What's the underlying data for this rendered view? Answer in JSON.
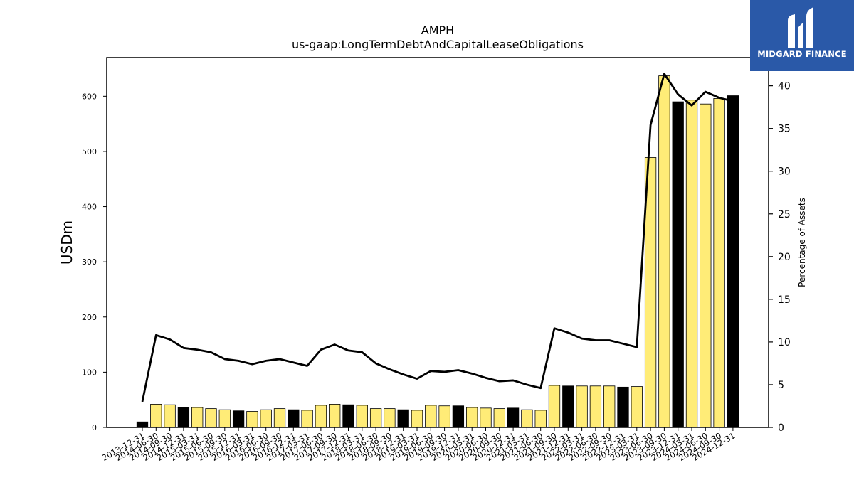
{
  "logo": {
    "text": "MIDGARD FINANCE",
    "bg_color": "#2a59a8"
  },
  "colors": {
    "bar_yellow": "#ffec77",
    "bar_black": "#000000",
    "line": "#000000"
  },
  "chart_data": {
    "type": "bar",
    "title": "AMPH",
    "subtitle": "us-gaap:LongTermDebtAndCapitalLeaseObligations",
    "ylabel": "USDm",
    "y2label": "Percentage of Assets",
    "ylim": [
      0,
      670
    ],
    "y2lim": [
      0,
      43.3
    ],
    "yticks": [
      0,
      100,
      200,
      300,
      400,
      500,
      600
    ],
    "y2ticks": [
      0,
      5,
      10,
      15,
      20,
      25,
      30,
      35,
      40
    ],
    "categories": [
      "2013-12-31",
      "2014-06-30",
      "2014-09-30",
      "2014-12-31",
      "2015-03-31",
      "2015-06-30",
      "2015-09-30",
      "2015-12-31",
      "2016-03-31",
      "2016-06-30",
      "2016-09-30",
      "2016-12-31",
      "2017-03-31",
      "2017-06-30",
      "2017-09-30",
      "2017-12-31",
      "2018-03-31",
      "2018-06-30",
      "2018-09-30",
      "2018-12-31",
      "2019-03-31",
      "2019-06-30",
      "2019-09-30",
      "2019-12-31",
      "2020-03-31",
      "2020-06-30",
      "2020-09-30",
      "2020-12-31",
      "2021-03-31",
      "2021-06-30",
      "2021-09-30",
      "2021-12-31",
      "2022-03-31",
      "2022-06-30",
      "2022-09-30",
      "2022-12-31",
      "2023-03-31",
      "2023-06-30",
      "2023-09-30",
      "2023-12-31",
      "2024-03-31",
      "2024-06-30",
      "2024-09-30",
      "2024-12-31"
    ],
    "series": [
      {
        "kind": "bar",
        "values": [
          10,
          42,
          41,
          36,
          36,
          34,
          32,
          30,
          29,
          32,
          34,
          32,
          31,
          40,
          42,
          41,
          40,
          34,
          34,
          32,
          31,
          40,
          39,
          39,
          36,
          35,
          34,
          35,
          32,
          31,
          76,
          75,
          75,
          75,
          75,
          73,
          74,
          489,
          637,
          590,
          593,
          586,
          596,
          601
        ],
        "highlight": [
          "black",
          "yellow",
          "yellow",
          "black",
          "yellow",
          "yellow",
          "yellow",
          "black",
          "yellow",
          "yellow",
          "yellow",
          "black",
          "yellow",
          "yellow",
          "yellow",
          "black",
          "yellow",
          "yellow",
          "yellow",
          "black",
          "yellow",
          "yellow",
          "yellow",
          "black",
          "yellow",
          "yellow",
          "yellow",
          "black",
          "yellow",
          "yellow",
          "yellow",
          "black",
          "yellow",
          "yellow",
          "yellow",
          "black",
          "yellow",
          "yellow",
          "yellow",
          "black",
          "yellow",
          "yellow",
          "yellow",
          "black"
        ]
      },
      {
        "kind": "line",
        "axis": "right",
        "values": [
          3.0,
          10.8,
          10.3,
          9.3,
          9.1,
          8.8,
          8.0,
          7.8,
          7.4,
          7.8,
          8.0,
          7.6,
          7.2,
          9.1,
          9.7,
          9.0,
          8.8,
          7.5,
          6.8,
          6.2,
          5.7,
          6.6,
          6.5,
          6.7,
          6.3,
          5.8,
          5.4,
          5.5,
          5.0,
          4.6,
          11.6,
          11.1,
          10.4,
          10.2,
          10.2,
          9.8,
          9.4,
          35.4,
          41.4,
          39.0,
          37.7,
          39.3,
          38.6,
          38.2
        ]
      }
    ],
    "grid": false
  }
}
